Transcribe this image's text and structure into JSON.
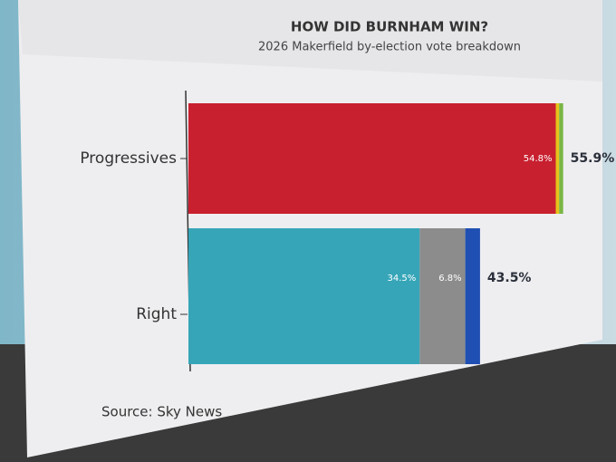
{
  "chart_data": {
    "type": "stacked-bar",
    "title": "HOW DID BURNHAM WIN?",
    "subtitle": "2026 Makerfield by-election vote breakdown",
    "categories": [
      "Progressives",
      "Right"
    ],
    "series": [
      {
        "colors": [
          "#c8202f",
          "#36a5b8"
        ],
        "values": [
          54.8,
          34.5
        ],
        "value_labels": [
          "54.8%",
          "34.5%"
        ]
      },
      {
        "colors": [
          "#e6c21a",
          "#8c8c8c"
        ],
        "values": [
          0.5,
          6.8
        ],
        "value_labels": [
          null,
          "6.8%"
        ]
      },
      {
        "colors": [
          "#79b545",
          "#1f4fb3"
        ],
        "values": [
          0.6,
          2.2
        ]
      }
    ],
    "totals": [
      55.9,
      43.5
    ],
    "total_labels": [
      "55.9%",
      "43.5%"
    ],
    "source": "Source: Sky News"
  }
}
